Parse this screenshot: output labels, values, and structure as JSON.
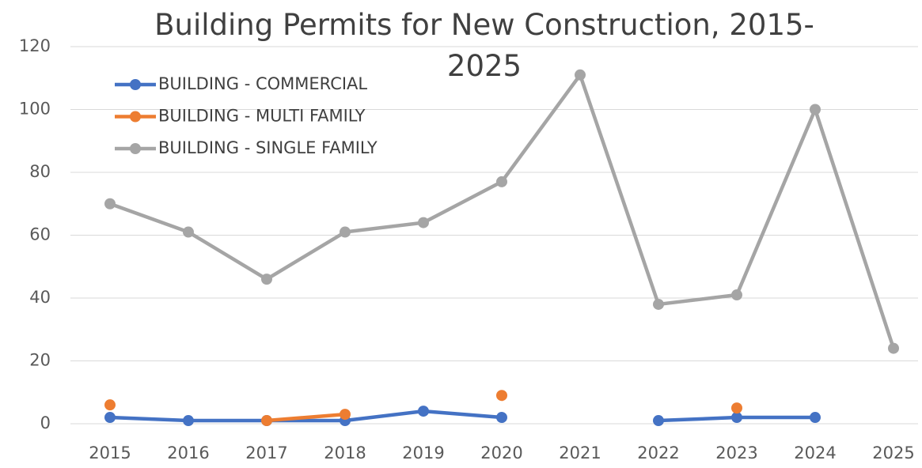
{
  "chart_data": {
    "type": "line",
    "title": "Building Permits for New Construction, 2015-2025",
    "categories": [
      "2015",
      "2016",
      "2017",
      "2018",
      "2019",
      "2020",
      "2021",
      "2022",
      "2023",
      "2024",
      "2025"
    ],
    "series": [
      {
        "name": "BUILDING - COMMERCIAL",
        "color": "#4472c4",
        "values": [
          2,
          1,
          1,
          1,
          4,
          2,
          null,
          1,
          2,
          2,
          null
        ]
      },
      {
        "name": "BUILDING - MULTI FAMILY",
        "color": "#ed7d31",
        "values": [
          6,
          null,
          1,
          3,
          null,
          9,
          null,
          null,
          5,
          null,
          null
        ]
      },
      {
        "name": "BUILDING - SINGLE FAMILY",
        "color": "#a5a5a5",
        "values": [
          70,
          61,
          46,
          61,
          64,
          77,
          111,
          38,
          41,
          100,
          24
        ]
      }
    ],
    "ylim": [
      0,
      120
    ],
    "yticks": [
      0,
      20,
      40,
      60,
      80,
      100,
      120
    ],
    "grid": true,
    "legend": "top-left"
  }
}
